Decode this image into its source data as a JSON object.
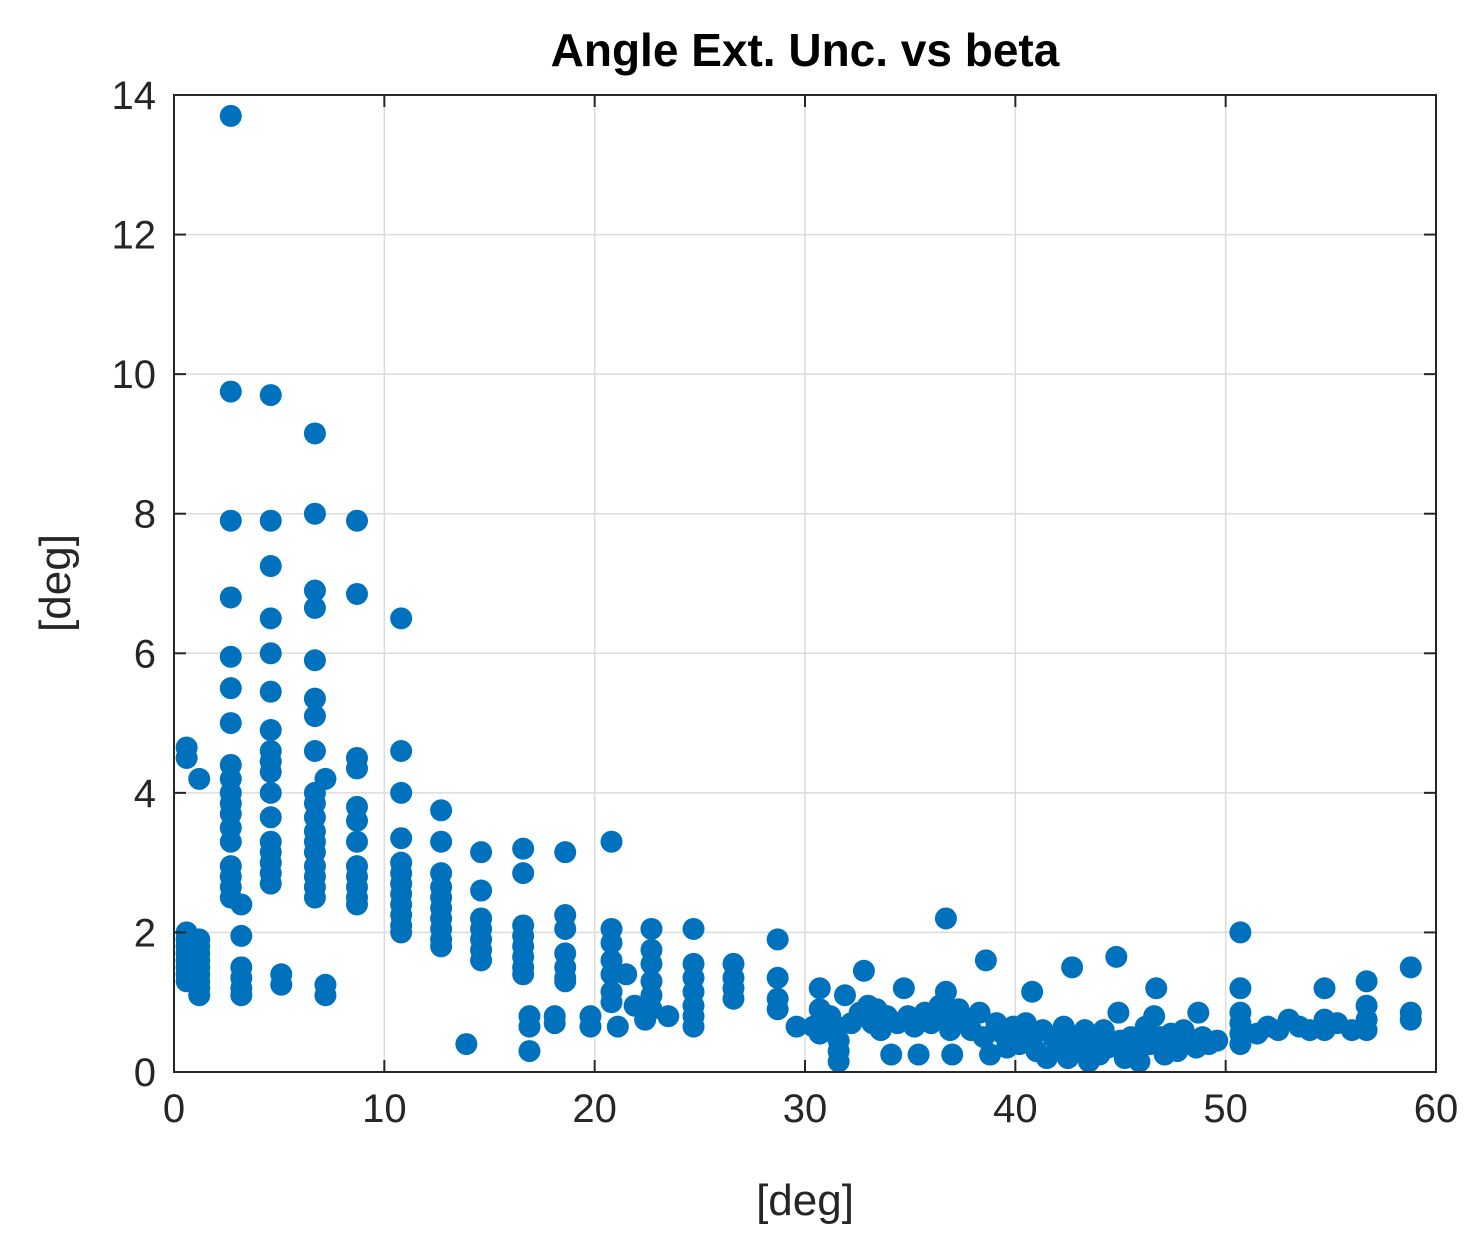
{
  "chart_data": {
    "type": "scatter",
    "title": "Angle Ext. Unc. vs beta",
    "xlabel": "[deg]",
    "ylabel": "[deg]",
    "xlim": [
      0,
      60
    ],
    "ylim": [
      0,
      14
    ],
    "xticks": [
      "0",
      "10",
      "20",
      "30",
      "40",
      "50",
      "60"
    ],
    "yticks": [
      "0",
      "2",
      "4",
      "6",
      "8",
      "10",
      "12",
      "14"
    ],
    "grid": true,
    "marker_color": "#0072BD",
    "series": [
      {
        "name": "beta",
        "points": [
          [
            0.6,
            4.65
          ],
          [
            0.6,
            4.5
          ],
          [
            0.6,
            2.0
          ],
          [
            0.6,
            1.9
          ],
          [
            0.6,
            1.8
          ],
          [
            0.6,
            1.7
          ],
          [
            0.6,
            1.6
          ],
          [
            0.6,
            1.5
          ],
          [
            0.6,
            1.4
          ],
          [
            0.6,
            1.3
          ],
          [
            1.2,
            4.2
          ],
          [
            1.2,
            1.9
          ],
          [
            1.2,
            1.8
          ],
          [
            1.2,
            1.7
          ],
          [
            1.2,
            1.6
          ],
          [
            1.2,
            1.5
          ],
          [
            1.2,
            1.4
          ],
          [
            1.2,
            1.3
          ],
          [
            1.2,
            1.2
          ],
          [
            1.2,
            1.1
          ],
          [
            2.7,
            13.7
          ],
          [
            2.7,
            9.75
          ],
          [
            2.7,
            7.9
          ],
          [
            2.7,
            6.8
          ],
          [
            2.7,
            5.95
          ],
          [
            2.7,
            5.5
          ],
          [
            2.7,
            5.0
          ],
          [
            2.7,
            4.4
          ],
          [
            2.7,
            4.2
          ],
          [
            2.7,
            4.0
          ],
          [
            2.7,
            3.85
          ],
          [
            2.7,
            3.7
          ],
          [
            2.7,
            3.5
          ],
          [
            2.7,
            3.3
          ],
          [
            2.7,
            2.95
          ],
          [
            2.7,
            2.8
          ],
          [
            2.7,
            2.65
          ],
          [
            2.7,
            2.5
          ],
          [
            3.2,
            2.4
          ],
          [
            3.2,
            1.95
          ],
          [
            3.2,
            1.5
          ],
          [
            3.2,
            1.35
          ],
          [
            3.2,
            1.2
          ],
          [
            3.2,
            1.1
          ],
          [
            4.6,
            9.7
          ],
          [
            4.6,
            7.9
          ],
          [
            4.6,
            7.25
          ],
          [
            4.6,
            6.5
          ],
          [
            4.6,
            6.0
          ],
          [
            4.6,
            5.45
          ],
          [
            4.6,
            4.9
          ],
          [
            4.6,
            4.6
          ],
          [
            4.6,
            4.45
          ],
          [
            4.6,
            4.3
          ],
          [
            4.6,
            4.0
          ],
          [
            4.6,
            3.65
          ],
          [
            4.6,
            3.3
          ],
          [
            4.6,
            3.15
          ],
          [
            4.6,
            3.0
          ],
          [
            4.6,
            2.85
          ],
          [
            4.6,
            2.7
          ],
          [
            5.1,
            1.4
          ],
          [
            5.1,
            1.25
          ],
          [
            6.7,
            9.15
          ],
          [
            6.7,
            8.0
          ],
          [
            6.7,
            6.9
          ],
          [
            6.7,
            6.65
          ],
          [
            6.7,
            5.9
          ],
          [
            6.7,
            5.35
          ],
          [
            6.7,
            5.1
          ],
          [
            6.7,
            4.6
          ],
          [
            6.7,
            4.0
          ],
          [
            6.7,
            3.85
          ],
          [
            6.7,
            3.65
          ],
          [
            6.7,
            3.45
          ],
          [
            6.7,
            3.3
          ],
          [
            6.7,
            3.15
          ],
          [
            6.7,
            2.95
          ],
          [
            6.7,
            2.8
          ],
          [
            6.7,
            2.65
          ],
          [
            6.7,
            2.5
          ],
          [
            7.2,
            4.2
          ],
          [
            7.2,
            1.25
          ],
          [
            7.2,
            1.1
          ],
          [
            8.7,
            7.9
          ],
          [
            8.7,
            6.85
          ],
          [
            8.7,
            4.5
          ],
          [
            8.7,
            4.35
          ],
          [
            8.7,
            3.8
          ],
          [
            8.7,
            3.6
          ],
          [
            8.7,
            3.3
          ],
          [
            8.7,
            2.95
          ],
          [
            8.7,
            2.8
          ],
          [
            8.7,
            2.65
          ],
          [
            8.7,
            2.5
          ],
          [
            8.7,
            2.4
          ],
          [
            10.8,
            6.5
          ],
          [
            10.8,
            4.6
          ],
          [
            10.8,
            4.0
          ],
          [
            10.8,
            3.35
          ],
          [
            10.8,
            3.0
          ],
          [
            10.8,
            2.85
          ],
          [
            10.8,
            2.7
          ],
          [
            10.8,
            2.55
          ],
          [
            10.8,
            2.4
          ],
          [
            10.8,
            2.25
          ],
          [
            10.8,
            2.1
          ],
          [
            10.8,
            2.0
          ],
          [
            12.7,
            3.75
          ],
          [
            12.7,
            3.3
          ],
          [
            12.7,
            2.85
          ],
          [
            12.7,
            2.65
          ],
          [
            12.7,
            2.5
          ],
          [
            12.7,
            2.35
          ],
          [
            12.7,
            2.2
          ],
          [
            12.7,
            2.05
          ],
          [
            12.7,
            1.9
          ],
          [
            12.7,
            1.8
          ],
          [
            14.6,
            3.15
          ],
          [
            14.6,
            2.6
          ],
          [
            14.6,
            2.2
          ],
          [
            14.6,
            2.05
          ],
          [
            14.6,
            1.9
          ],
          [
            14.6,
            1.75
          ],
          [
            14.6,
            1.6
          ],
          [
            13.9,
            0.4
          ],
          [
            16.6,
            3.2
          ],
          [
            16.6,
            2.85
          ],
          [
            16.6,
            2.1
          ],
          [
            16.6,
            1.95
          ],
          [
            16.6,
            1.8
          ],
          [
            16.6,
            1.65
          ],
          [
            16.6,
            1.5
          ],
          [
            16.6,
            1.4
          ],
          [
            16.9,
            0.8
          ],
          [
            16.9,
            0.65
          ],
          [
            16.9,
            0.3
          ],
          [
            18.6,
            3.15
          ],
          [
            18.6,
            2.25
          ],
          [
            18.6,
            2.05
          ],
          [
            18.6,
            1.7
          ],
          [
            18.6,
            1.5
          ],
          [
            18.6,
            1.35
          ],
          [
            18.6,
            1.3
          ],
          [
            18.1,
            0.8
          ],
          [
            18.1,
            0.7
          ],
          [
            19.8,
            0.8
          ],
          [
            19.8,
            0.65
          ],
          [
            20.8,
            3.3
          ],
          [
            20.8,
            2.05
          ],
          [
            20.8,
            1.85
          ],
          [
            20.8,
            1.6
          ],
          [
            20.8,
            1.4
          ],
          [
            20.8,
            1.15
          ],
          [
            20.8,
            1.0
          ],
          [
            21.1,
            0.65
          ],
          [
            21.5,
            1.4
          ],
          [
            21.9,
            0.95
          ],
          [
            22.4,
            0.75
          ],
          [
            22.7,
            2.05
          ],
          [
            22.7,
            1.75
          ],
          [
            22.7,
            1.55
          ],
          [
            22.7,
            1.3
          ],
          [
            22.7,
            1.1
          ],
          [
            22.7,
            0.9
          ],
          [
            23.5,
            0.8
          ],
          [
            24.7,
            2.05
          ],
          [
            24.7,
            1.55
          ],
          [
            24.7,
            1.35
          ],
          [
            24.7,
            1.15
          ],
          [
            24.7,
            0.95
          ],
          [
            24.7,
            0.8
          ],
          [
            24.7,
            0.65
          ],
          [
            26.6,
            1.55
          ],
          [
            26.6,
            1.35
          ],
          [
            26.6,
            1.2
          ],
          [
            26.6,
            1.05
          ],
          [
            28.7,
            1.9
          ],
          [
            28.7,
            1.35
          ],
          [
            28.7,
            1.05
          ],
          [
            28.7,
            0.9
          ],
          [
            29.6,
            0.65
          ],
          [
            30.4,
            0.65
          ],
          [
            30.7,
            1.2
          ],
          [
            30.7,
            0.9
          ],
          [
            30.7,
            0.55
          ],
          [
            31.2,
            0.8
          ],
          [
            31.5,
            0.65
          ],
          [
            31.6,
            0.45
          ],
          [
            31.6,
            0.3
          ],
          [
            31.6,
            0.15
          ],
          [
            31.9,
            1.1
          ],
          [
            32.2,
            0.7
          ],
          [
            32.6,
            0.85
          ],
          [
            32.8,
            1.45
          ],
          [
            33.0,
            0.95
          ],
          [
            33.2,
            0.7
          ],
          [
            33.4,
            0.9
          ],
          [
            33.6,
            0.6
          ],
          [
            33.9,
            0.8
          ],
          [
            34.1,
            0.25
          ],
          [
            34.4,
            0.7
          ],
          [
            34.7,
            1.2
          ],
          [
            34.9,
            0.8
          ],
          [
            35.2,
            0.65
          ],
          [
            35.4,
            0.25
          ],
          [
            35.7,
            0.85
          ],
          [
            36.0,
            0.7
          ],
          [
            36.7,
            2.2
          ],
          [
            36.7,
            1.15
          ],
          [
            36.4,
            0.95
          ],
          [
            36.6,
            0.8
          ],
          [
            36.9,
            0.6
          ],
          [
            37.0,
            0.25
          ],
          [
            37.3,
            0.9
          ],
          [
            37.6,
            0.75
          ],
          [
            37.9,
            0.6
          ],
          [
            38.6,
            1.6
          ],
          [
            38.3,
            0.85
          ],
          [
            38.5,
            0.5
          ],
          [
            38.8,
            0.25
          ],
          [
            39.1,
            0.7
          ],
          [
            39.4,
            0.55
          ],
          [
            39.6,
            0.35
          ],
          [
            39.9,
            0.65
          ],
          [
            40.2,
            0.4
          ],
          [
            40.8,
            1.15
          ],
          [
            40.5,
            0.7
          ],
          [
            40.8,
            0.5
          ],
          [
            41.0,
            0.3
          ],
          [
            41.3,
            0.6
          ],
          [
            41.5,
            0.2
          ],
          [
            41.8,
            0.5
          ],
          [
            42.0,
            0.35
          ],
          [
            42.3,
            0.65
          ],
          [
            42.5,
            0.2
          ],
          [
            42.7,
            1.5
          ],
          [
            42.8,
            0.45
          ],
          [
            43.0,
            0.3
          ],
          [
            43.3,
            0.6
          ],
          [
            43.5,
            0.15
          ],
          [
            43.8,
            0.4
          ],
          [
            44.0,
            0.25
          ],
          [
            44.2,
            0.6
          ],
          [
            44.4,
            0.35
          ],
          [
            44.8,
            1.65
          ],
          [
            44.9,
            0.85
          ],
          [
            45.0,
            0.45
          ],
          [
            45.2,
            0.2
          ],
          [
            45.5,
            0.5
          ],
          [
            45.7,
            0.3
          ],
          [
            45.9,
            0.15
          ],
          [
            46.2,
            0.65
          ],
          [
            46.4,
            0.4
          ],
          [
            46.7,
            1.2
          ],
          [
            46.6,
            0.8
          ],
          [
            46.9,
            0.5
          ],
          [
            47.1,
            0.25
          ],
          [
            47.4,
            0.55
          ],
          [
            47.7,
            0.3
          ],
          [
            48.0,
            0.6
          ],
          [
            48.3,
            0.45
          ],
          [
            48.6,
            0.35
          ],
          [
            48.7,
            0.85
          ],
          [
            48.9,
            0.5
          ],
          [
            49.2,
            0.4
          ],
          [
            49.6,
            0.45
          ],
          [
            50.7,
            2.0
          ],
          [
            50.7,
            1.2
          ],
          [
            50.7,
            0.85
          ],
          [
            50.7,
            0.7
          ],
          [
            50.7,
            0.55
          ],
          [
            50.7,
            0.4
          ],
          [
            51.5,
            0.55
          ],
          [
            52.0,
            0.65
          ],
          [
            52.5,
            0.6
          ],
          [
            53.0,
            0.75
          ],
          [
            53.5,
            0.65
          ],
          [
            54.0,
            0.6
          ],
          [
            54.7,
            1.2
          ],
          [
            54.7,
            0.75
          ],
          [
            54.7,
            0.6
          ],
          [
            55.3,
            0.7
          ],
          [
            56.0,
            0.6
          ],
          [
            56.7,
            1.3
          ],
          [
            56.7,
            0.95
          ],
          [
            56.7,
            0.75
          ],
          [
            56.7,
            0.6
          ],
          [
            58.8,
            1.5
          ],
          [
            58.8,
            0.85
          ],
          [
            58.8,
            0.75
          ]
        ]
      }
    ]
  }
}
